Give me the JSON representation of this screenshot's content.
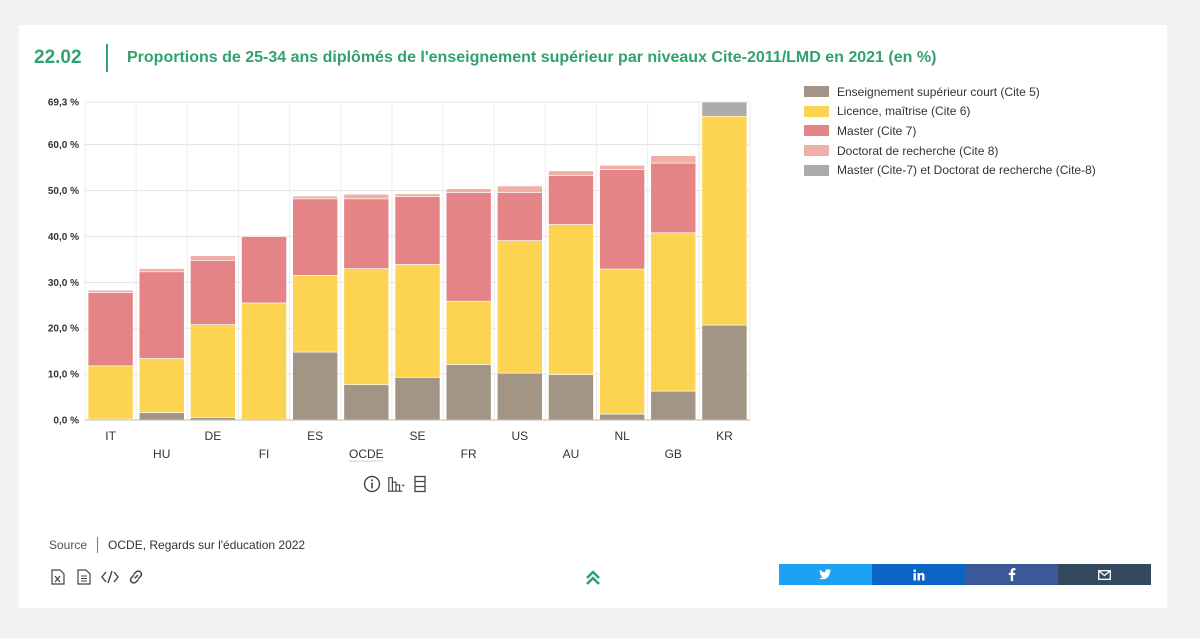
{
  "figure": {
    "number": "22.02",
    "title": "Proportions de 25-34 ans diplômés de l'enseignement supérieur par niveaux Cite-2011/LMD en 2021 (en %)"
  },
  "chart_data": {
    "type": "bar",
    "stacked": true,
    "categories": [
      "IT",
      "HU",
      "DE",
      "FI",
      "ES",
      "OCDE",
      "SE",
      "FR",
      "US",
      "AU",
      "NL",
      "GB",
      "KR"
    ],
    "series": [
      {
        "name": "Enseignement supérieur court (Cite 5)",
        "color": "#a39585",
        "values": [
          0.2,
          1.6,
          0.5,
          0.1,
          14.8,
          7.7,
          9.3,
          12.1,
          10.2,
          9.9,
          1.3,
          6.3,
          20.7
        ]
      },
      {
        "name": "Licence, maîtrise (Cite 6)",
        "color": "#fcd452",
        "values": [
          11.6,
          11.8,
          20.3,
          25.4,
          16.7,
          25.3,
          24.6,
          13.8,
          28.9,
          32.7,
          31.6,
          34.5,
          45.5
        ]
      },
      {
        "name": "Master (Cite 7)",
        "color": "#e58486",
        "values": [
          16.0,
          18.9,
          14.0,
          14.5,
          16.7,
          15.2,
          14.8,
          23.7,
          10.5,
          10.7,
          21.7,
          15.2,
          0
        ]
      },
      {
        "name": "Doctorat de recherche (Cite 8)",
        "color": "#f0b0a8",
        "values": [
          0.5,
          0.7,
          1.0,
          0.2,
          0.6,
          1.0,
          0.6,
          0.8,
          1.4,
          1.0,
          0.9,
          1.6,
          0
        ]
      },
      {
        "name": "Master (Cite-7) et Doctorat de recherche (Cite-8)",
        "color": "#aeaaa9",
        "values": [
          0,
          0,
          0,
          0,
          0,
          0,
          0,
          0,
          0,
          0,
          0,
          0,
          3.1
        ]
      }
    ],
    "yticks": [
      "0,0 %",
      "10,0 %",
      "20,0 %",
      "30,0 %",
      "40,0 %",
      "50,0 %",
      "60,0 %",
      "69,3 %"
    ],
    "ytick_values": [
      0,
      10,
      20,
      30,
      40,
      50,
      60,
      69.3
    ],
    "ylim": [
      0,
      69.3
    ],
    "grid": true,
    "legend_position": "right"
  },
  "source": {
    "label": "Source",
    "value": "OCDE, Regards sur l'éducation 2022"
  },
  "icons": {
    "tools": [
      "info-icon",
      "bar-chart-icon",
      "table-icon"
    ],
    "downloads": [
      "excel-file-icon",
      "document-icon",
      "code-icon",
      "link-icon"
    ],
    "back_to_top": "double-chevron-up-icon",
    "share": [
      {
        "name": "twitter-icon",
        "color": "#1da1f2"
      },
      {
        "name": "linkedin-icon",
        "color": "#0a66c2"
      },
      {
        "name": "facebook-icon",
        "color": "#3b5998"
      },
      {
        "name": "mail-icon",
        "color": "#34495e"
      }
    ]
  },
  "colors": {
    "accent": "#2fa36b"
  }
}
